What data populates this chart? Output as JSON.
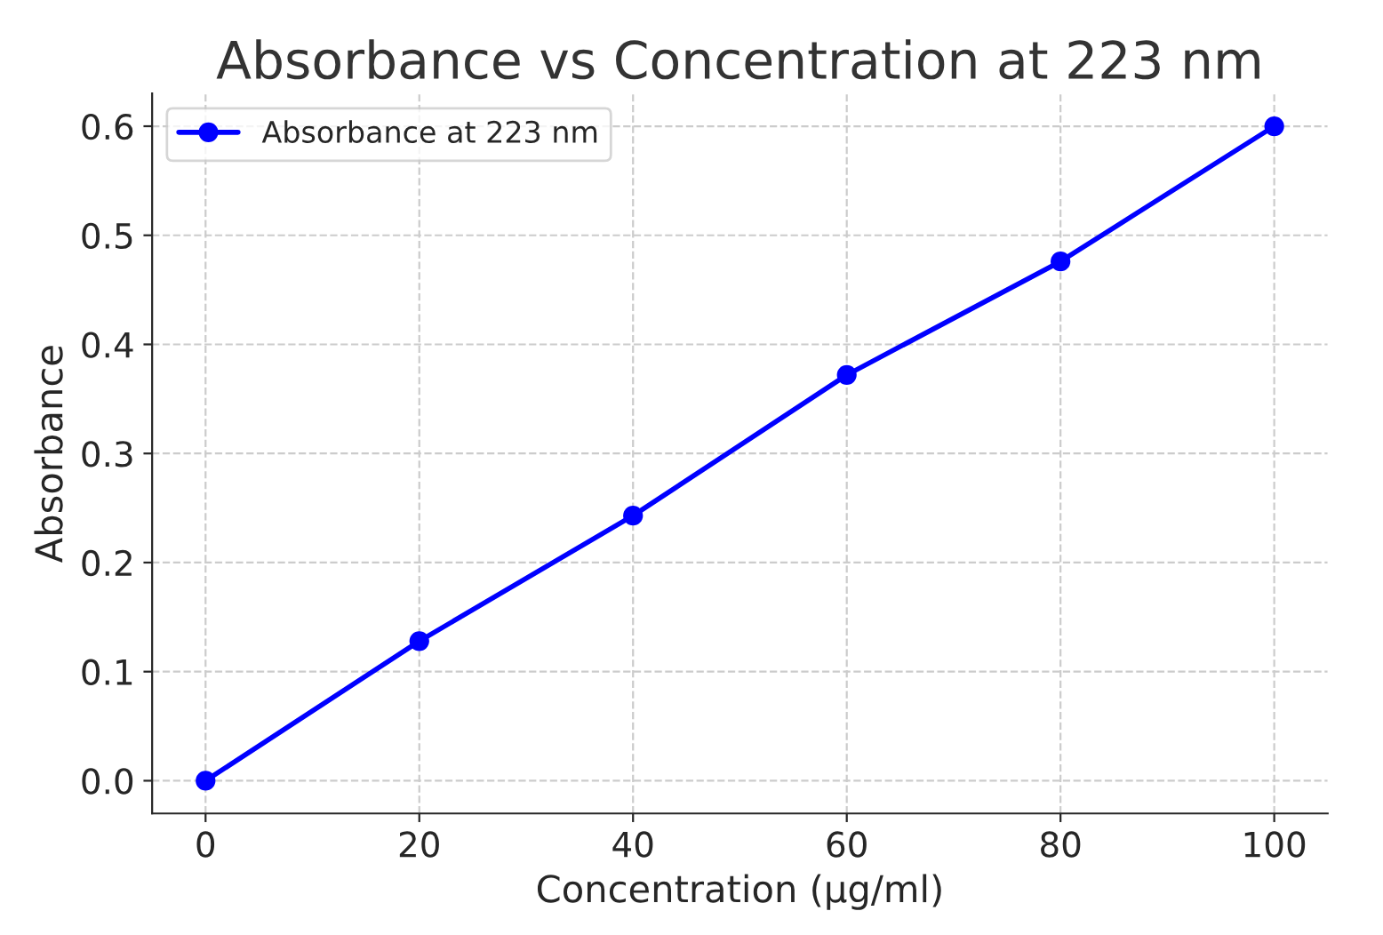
{
  "chart_data": {
    "type": "line",
    "title": "Absorbance vs Concentration at 223 nm",
    "xlabel": "Concentration (µg/ml)",
    "ylabel": "Absorbance",
    "x": [
      0,
      20,
      40,
      60,
      80,
      100
    ],
    "series": [
      {
        "name": "Absorbance at 223 nm",
        "color": "#0000ff",
        "values": [
          0.0,
          0.128,
          0.243,
          0.372,
          0.476,
          0.6
        ]
      }
    ],
    "xlim": [
      -5,
      105
    ],
    "xticks": [
      0,
      20,
      40,
      60,
      80,
      100
    ],
    "ylim": [
      -0.03,
      0.63
    ],
    "yticks": [
      {
        "value": 0,
        "label": "0.0"
      },
      0.1,
      0.2,
      0.3,
      0.4,
      0.5,
      0.6
    ],
    "grid": true,
    "legend": "top left",
    "marker": "circle",
    "line_style": "solid"
  }
}
